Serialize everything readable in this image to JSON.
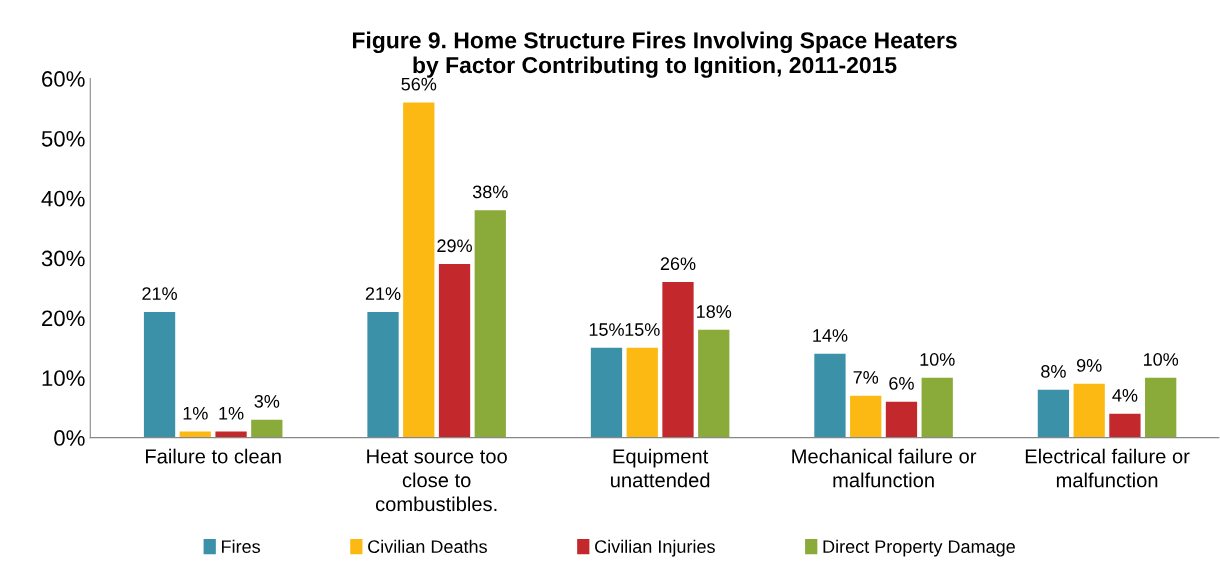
{
  "chart_data": {
    "type": "bar",
    "title": "Figure 9. Home Structure Fires Involving Space Heaters\nby Factor Contributing to Ignition, 2011-2015",
    "categories": [
      "Failure to clean",
      "Heat source too\nclose to\ncombustibles.",
      "Equipment\nunattended",
      "Mechanical failure or\nmalfunction",
      "Electrical failure or\nmalfunction"
    ],
    "series": [
      {
        "name": "Fires",
        "color": "#3a91a8",
        "values": [
          21,
          21,
          15,
          14,
          8
        ],
        "value_labels": [
          "21%",
          "21%",
          "15%",
          "14%",
          "8%"
        ]
      },
      {
        "name": "Civilian Deaths",
        "color": "#fdb913",
        "values": [
          1,
          56,
          15,
          7,
          9
        ],
        "value_labels": [
          "1%",
          "56%",
          "15%",
          "7%",
          "9%"
        ]
      },
      {
        "name": "Civilian Injuries",
        "color": "#c3282d",
        "values": [
          1,
          29,
          26,
          6,
          4
        ],
        "value_labels": [
          "1%",
          "29%",
          "26%",
          "6%",
          "4%"
        ]
      },
      {
        "name": "Direct Property Damage",
        "color": "#8aab3a",
        "values": [
          3,
          38,
          18,
          10,
          10
        ],
        "value_labels": [
          "3%",
          "38%",
          "18%",
          "10%",
          "10%"
        ]
      }
    ],
    "ylim": [
      0,
      60
    ],
    "yticks": [
      {
        "value": 0,
        "label": "0%"
      },
      {
        "value": 10,
        "label": "10%"
      },
      {
        "value": 20,
        "label": "20%"
      },
      {
        "value": 30,
        "label": "30%"
      },
      {
        "value": 40,
        "label": "40%"
      },
      {
        "value": 50,
        "label": "50%"
      },
      {
        "value": 60,
        "label": "60%"
      }
    ],
    "grid": false,
    "legend": "bottom"
  }
}
